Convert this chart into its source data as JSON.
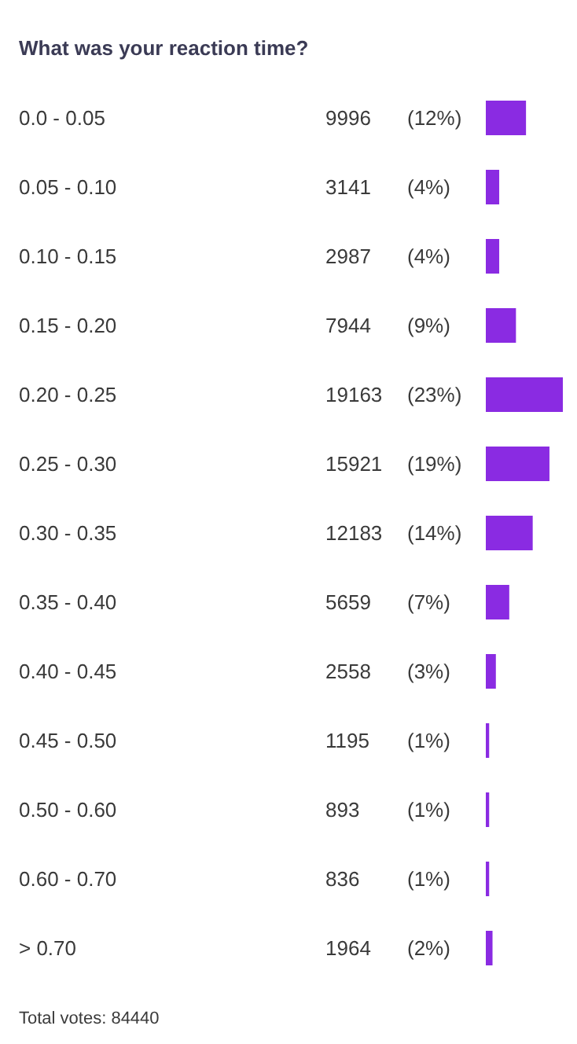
{
  "chart_data": {
    "type": "bar",
    "orientation": "horizontal",
    "title": "What was your reaction time?",
    "categories": [
      "0.0 - 0.05",
      "0.05 - 0.10",
      "0.10 - 0.15",
      "0.15 - 0.20",
      "0.20 - 0.25",
      "0.25 - 0.30",
      "0.30 - 0.35",
      "0.35 - 0.40",
      "0.40 - 0.45",
      "0.45 - 0.50",
      "0.50 - 0.60",
      "0.60 - 0.70",
      "> 0.70"
    ],
    "values": [
      12,
      4,
      4,
      9,
      23,
      19,
      14,
      7,
      3,
      1,
      1,
      1,
      2
    ],
    "value_labels": [
      "(12%)",
      "(4%)",
      "(4%)",
      "(9%)",
      "(23%)",
      "(19%)",
      "(14%)",
      "(7%)",
      "(3%)",
      "(1%)",
      "(1%)",
      "(1%)",
      "(2%)"
    ],
    "color": "#8a2be2",
    "annotations": [
      "9996",
      "3141",
      "2987",
      "7944",
      "19163",
      "15921",
      "12183",
      "5659",
      "2558",
      "1195",
      "893",
      "836",
      "1964",
      "Total votes: 84440"
    ]
  }
}
